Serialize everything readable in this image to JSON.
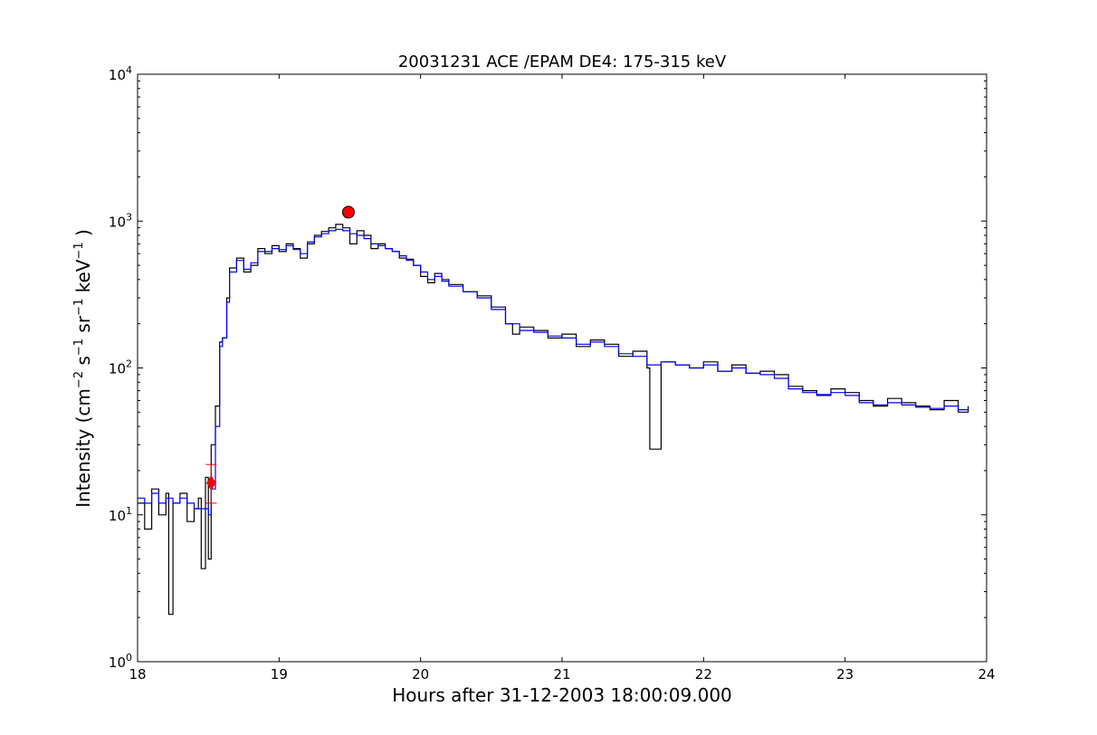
{
  "chart_data": {
    "type": "line",
    "title": "20031231 ACE /EPAM DE4: 175-315 keV",
    "xlabel": "Hours after 31-12-2003 18:00:09.000",
    "ylabel_parts": [
      "Intensity (cm",
      "−2",
      " s",
      "−1",
      " sr",
      "−1",
      " keV",
      "−1",
      " )"
    ],
    "xlim": [
      18,
      24
    ],
    "ylim": [
      1,
      10000
    ],
    "yscale": "log",
    "grid": false,
    "x_ticks": [
      18,
      19,
      20,
      21,
      22,
      23,
      24
    ],
    "x_tick_labels": [
      "18",
      "19",
      "20",
      "21",
      "22",
      "23",
      "24"
    ],
    "y_ticks": [
      1,
      10,
      100,
      1000,
      10000
    ],
    "y_tick_labels": [
      {
        "base": "10",
        "exp": "0"
      },
      {
        "base": "10",
        "exp": "1"
      },
      {
        "base": "10",
        "exp": "2"
      },
      {
        "base": "10",
        "exp": "3"
      },
      {
        "base": "10",
        "exp": "4"
      }
    ],
    "series": [
      {
        "color": "#000000",
        "style": "steps",
        "x": [
          18.0,
          18.05,
          18.1,
          18.15,
          18.2,
          18.22,
          18.25,
          18.3,
          18.35,
          18.4,
          18.43,
          18.45,
          18.48,
          18.5,
          18.52,
          18.55,
          18.58,
          18.6,
          18.63,
          18.65,
          18.7,
          18.75,
          18.8,
          18.85,
          18.9,
          18.95,
          19.0,
          19.05,
          19.1,
          19.15,
          19.2,
          19.25,
          19.3,
          19.35,
          19.4,
          19.45,
          19.5,
          19.55,
          19.6,
          19.65,
          19.7,
          19.75,
          19.8,
          19.85,
          19.9,
          19.95,
          20.0,
          20.05,
          20.1,
          20.15,
          20.2,
          20.3,
          20.4,
          20.5,
          20.6,
          20.65,
          20.7,
          20.8,
          20.9,
          21.0,
          21.1,
          21.2,
          21.3,
          21.4,
          21.5,
          21.6,
          21.62,
          21.7,
          21.8,
          21.9,
          22.0,
          22.1,
          22.2,
          22.3,
          22.4,
          22.5,
          22.6,
          22.7,
          22.8,
          22.9,
          23.0,
          23.1,
          23.2,
          23.3,
          23.4,
          23.5,
          23.6,
          23.7,
          23.8,
          23.87
        ],
        "y": [
          12,
          8,
          15,
          10,
          14,
          2.1,
          12,
          14,
          9,
          11,
          13,
          4.3,
          18,
          5,
          30,
          55,
          150,
          160,
          300,
          480,
          560,
          450,
          500,
          650,
          600,
          680,
          620,
          700,
          650,
          560,
          700,
          800,
          850,
          900,
          950,
          900,
          700,
          860,
          800,
          650,
          700,
          650,
          620,
          560,
          550,
          500,
          420,
          380,
          440,
          400,
          370,
          330,
          310,
          260,
          200,
          170,
          190,
          180,
          160,
          170,
          140,
          155,
          145,
          120,
          130,
          100,
          28,
          110,
          105,
          100,
          110,
          95,
          105,
          92,
          95,
          90,
          75,
          70,
          65,
          72,
          68,
          60,
          55,
          62,
          58,
          55,
          52,
          60,
          50,
          55
        ]
      },
      {
        "color": "#0000ff",
        "style": "steps",
        "x": [
          18.0,
          18.05,
          18.1,
          18.15,
          18.2,
          18.25,
          18.3,
          18.35,
          18.4,
          18.45,
          18.5,
          18.52,
          18.55,
          18.58,
          18.6,
          18.63,
          18.65,
          18.7,
          18.75,
          18.8,
          18.85,
          18.9,
          18.95,
          19.0,
          19.05,
          19.1,
          19.15,
          19.2,
          19.25,
          19.3,
          19.35,
          19.4,
          19.45,
          19.5,
          19.55,
          19.6,
          19.65,
          19.7,
          19.75,
          19.8,
          19.85,
          19.9,
          19.95,
          20.0,
          20.05,
          20.1,
          20.15,
          20.2,
          20.3,
          20.4,
          20.5,
          20.6,
          20.7,
          20.8,
          20.9,
          21.0,
          21.1,
          21.2,
          21.3,
          21.4,
          21.5,
          21.6,
          21.7,
          21.8,
          21.9,
          22.0,
          22.1,
          22.2,
          22.3,
          22.4,
          22.5,
          22.6,
          22.7,
          22.8,
          22.9,
          23.0,
          23.1,
          23.2,
          23.3,
          23.4,
          23.5,
          23.6,
          23.7,
          23.8,
          23.87
        ],
        "y": [
          13,
          12,
          14,
          12,
          13,
          12,
          13,
          12,
          11,
          11,
          10,
          15,
          40,
          140,
          160,
          280,
          450,
          540,
          470,
          520,
          620,
          620,
          650,
          640,
          680,
          640,
          600,
          720,
          780,
          820,
          860,
          880,
          860,
          820,
          800,
          760,
          700,
          680,
          650,
          620,
          580,
          540,
          500,
          450,
          400,
          420,
          390,
          360,
          330,
          300,
          250,
          200,
          180,
          175,
          165,
          160,
          145,
          150,
          140,
          125,
          120,
          105,
          110,
          105,
          100,
          105,
          95,
          100,
          92,
          90,
          85,
          72,
          68,
          66,
          68,
          65,
          58,
          56,
          58,
          56,
          54,
          53,
          55,
          52,
          53
        ]
      }
    ],
    "markers": [
      {
        "type": "circle",
        "x": 19.49,
        "y": 1150,
        "color": "#ff0000"
      },
      {
        "type": "diamond",
        "x": 18.52,
        "y": 16.5,
        "color": "#ff0000",
        "err_low": 12,
        "err_high": 22
      }
    ]
  }
}
